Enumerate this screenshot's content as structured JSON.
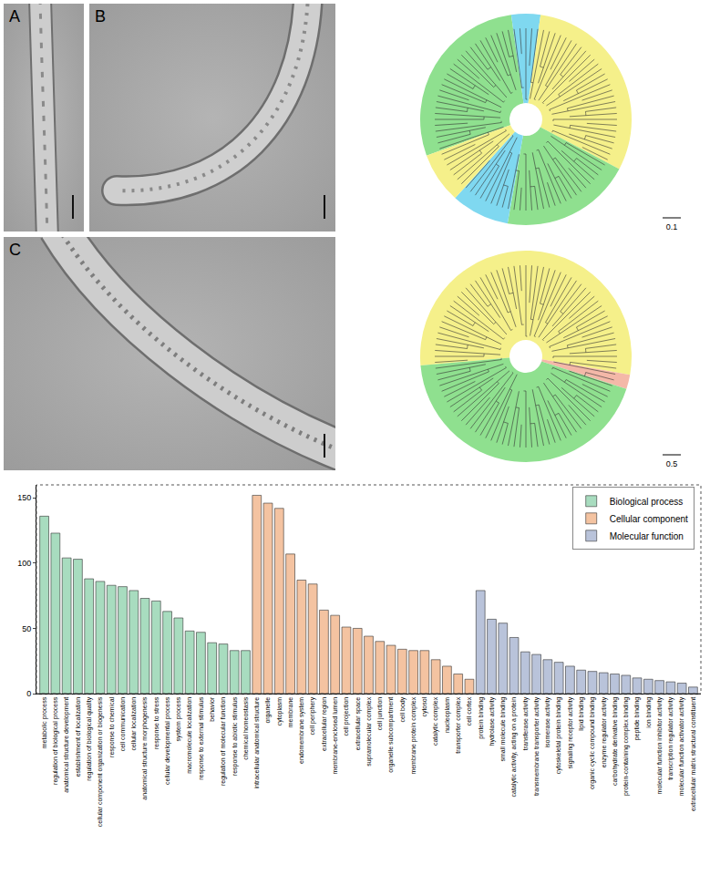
{
  "panels": [
    {
      "label": "A"
    },
    {
      "label": "B"
    },
    {
      "label": "C"
    }
  ],
  "trees": [
    {
      "scale_label": "0.1",
      "clades": [
        {
          "color": "#8fe08f",
          "from": -110,
          "to": -8
        },
        {
          "color": "#7fd8f0",
          "from": -8,
          "to": 8
        },
        {
          "color": "#f5f08a",
          "from": 8,
          "to": 118
        },
        {
          "color": "#8fe08f",
          "from": 118,
          "to": 190
        },
        {
          "color": "#7fd8f0",
          "from": 190,
          "to": 222
        },
        {
          "color": "#f5f08a",
          "from": 222,
          "to": 250
        }
      ]
    },
    {
      "scale_label": "0.5",
      "clades": [
        {
          "color": "#f5f08a",
          "from": -95,
          "to": 100
        },
        {
          "color": "#f4b8a8",
          "from": 100,
          "to": 108
        },
        {
          "color": "#8fe08f",
          "from": 108,
          "to": 265
        }
      ]
    }
  ],
  "chart_data": {
    "type": "bar",
    "categories": [
      "metabolic process",
      "regulation of biological process",
      "anatomical structure development",
      "establishment of localization",
      "regulation of biological quality",
      "cellular component organization or biogenesis",
      "response to chemical",
      "cell communication",
      "cellular localization",
      "anatomical structure morphogenesis",
      "response to stress",
      "cellular developmental process",
      "system process",
      "macromolecule localization",
      "response to external stimulus",
      "behavior",
      "regulation of molecular function",
      "response to abiotic stimulus",
      "chemical homeostasis",
      "intracellular anatomical structure",
      "organelle",
      "cytoplasm",
      "membrane",
      "endomembrane system",
      "cell periphery",
      "extracellular region",
      "membrane-enclosed lumen",
      "cell projection",
      "extracellular space",
      "supramolecular complex",
      "cell junction",
      "organelle subcompartment",
      "cell body",
      "membrane protein complex",
      "cytosol",
      "catalytic complex",
      "nucleoplasm",
      "transporter complex",
      "cell cortex",
      "protein binding",
      "hydrolase activity",
      "small molecule binding",
      "catalytic activity, acting on a protein",
      "transferase activity",
      "transmembrane transporter activity",
      "isomerase activity",
      "cytoskeletal protein binding",
      "signaling receptor activity",
      "lipid binding",
      "organic cyclic compound binding",
      "enzyme regulator activity",
      "carbohydrate derivative binding",
      "protein-containing complex binding",
      "peptide binding",
      "ion binding",
      "molecular function inhibitor activity",
      "transcription regulator activity",
      "molecular function activator activity",
      "extracellular matrix structural constituent"
    ],
    "series": [
      {
        "name": "Biological process",
        "color": "#a8dcbf",
        "values": [
          136,
          123,
          104,
          103,
          88,
          86,
          83,
          82,
          79,
          73,
          71,
          63,
          58,
          48,
          47,
          39,
          38,
          33,
          33,
          null,
          null,
          null,
          null,
          null,
          null,
          null,
          null,
          null,
          null,
          null,
          null,
          null,
          null,
          null,
          null,
          null,
          null,
          null,
          null,
          null,
          null,
          null,
          null,
          null,
          null,
          null,
          null,
          null,
          null,
          null,
          null,
          null,
          null,
          null,
          null,
          null,
          null,
          null,
          null
        ]
      },
      {
        "name": "Cellular component",
        "color": "#f4c3a1",
        "values": [
          null,
          null,
          null,
          null,
          null,
          null,
          null,
          null,
          null,
          null,
          null,
          null,
          null,
          null,
          null,
          null,
          null,
          null,
          null,
          152,
          146,
          142,
          107,
          87,
          84,
          64,
          60,
          51,
          50,
          44,
          40,
          37,
          34,
          33,
          33,
          26,
          21,
          15,
          11,
          null,
          null,
          null,
          null,
          null,
          null,
          null,
          null,
          null,
          null,
          null,
          null,
          null,
          null,
          null,
          null,
          null,
          null,
          null,
          null
        ]
      },
      {
        "name": "Molecular function",
        "color": "#b9c3da",
        "values": [
          null,
          null,
          null,
          null,
          null,
          null,
          null,
          null,
          null,
          null,
          null,
          null,
          null,
          null,
          null,
          null,
          null,
          null,
          null,
          null,
          null,
          null,
          null,
          null,
          null,
          null,
          null,
          null,
          null,
          null,
          null,
          null,
          null,
          null,
          null,
          null,
          null,
          null,
          null,
          79,
          57,
          54,
          43,
          32,
          30,
          26,
          24,
          21,
          18,
          17,
          16,
          15,
          14,
          12,
          11,
          10,
          9,
          8,
          5
        ]
      }
    ],
    "ylim": [
      0,
      160
    ],
    "yticks": [
      0,
      50,
      100,
      150
    ],
    "grid": false,
    "legend": "upper right"
  }
}
